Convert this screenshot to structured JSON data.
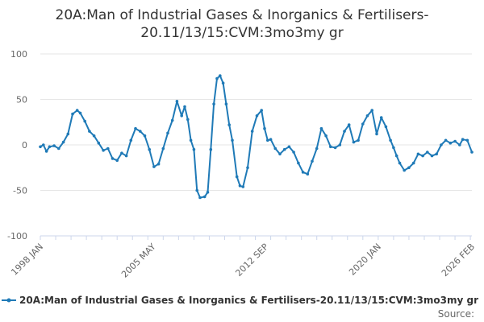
{
  "chart_data": {
    "type": "line",
    "title_lines": [
      "20A:Man of Industrial Gases & Inorganics & Fertilisers-",
      "20.11/13/15:CVM:3mo3my gr"
    ],
    "ylim": [
      -100,
      100
    ],
    "y_ticks": [
      100,
      50,
      0,
      -50,
      -100
    ],
    "x_range": [
      1998.0,
      2026.1
    ],
    "x_ticks": [
      {
        "label": "1998 JAN",
        "x": 1998.0
      },
      {
        "label": "2005 MAY",
        "x": 2005.33
      },
      {
        "label": "2012 SEP",
        "x": 2012.67
      },
      {
        "label": "2020 JAN",
        "x": 2020.0
      },
      {
        "label": "2026 FEB",
        "x": 2026.1
      }
    ],
    "legend_label": "20A:Man of Industrial Gases & Inorganics & Fertilisers-20.11/13/15:CVM:3mo3my gr",
    "source_label": "Source:",
    "series_color": "#1f7ab7",
    "series": [
      {
        "name": "20A:Man of Industrial Gases & Inorganics & Fertilisers-20.11/13/15:CVM:3mo3my gr",
        "x": [
          1998.0,
          1998.2,
          1998.4,
          1998.6,
          1998.9,
          1999.2,
          1999.5,
          1999.8,
          2000.1,
          2000.4,
          2000.6,
          2000.9,
          2001.2,
          2001.5,
          2001.8,
          2002.1,
          2002.4,
          2002.7,
          2003.0,
          2003.3,
          2003.6,
          2003.9,
          2004.2,
          2004.5,
          2004.8,
          2005.1,
          2005.4,
          2005.7,
          2006.0,
          2006.3,
          2006.6,
          2006.9,
          2007.2,
          2007.4,
          2007.6,
          2007.8,
          2008.0,
          2008.2,
          2008.4,
          2008.7,
          2008.9,
          2009.1,
          2009.3,
          2009.5,
          2009.7,
          2009.9,
          2010.1,
          2010.3,
          2010.5,
          2010.8,
          2011.0,
          2011.2,
          2011.5,
          2011.8,
          2012.1,
          2012.4,
          2012.6,
          2012.8,
          2013.0,
          2013.3,
          2013.6,
          2013.9,
          2014.2,
          2014.5,
          2014.8,
          2015.1,
          2015.4,
          2015.7,
          2016.0,
          2016.3,
          2016.6,
          2016.9,
          2017.2,
          2017.5,
          2017.8,
          2018.1,
          2018.4,
          2018.7,
          2019.0,
          2019.3,
          2019.6,
          2019.9,
          2020.2,
          2020.5,
          2020.8,
          2021.0,
          2021.2,
          2021.4,
          2021.7,
          2022.0,
          2022.3,
          2022.6,
          2022.9,
          2023.2,
          2023.5,
          2023.8,
          2024.1,
          2024.4,
          2024.7,
          2025.0,
          2025.3,
          2025.5,
          2025.8,
          2026.1
        ],
        "values": [
          -2,
          0,
          -7,
          -2,
          -1,
          -4,
          3,
          12,
          34,
          38,
          35,
          26,
          15,
          10,
          2,
          -6,
          -4,
          -15,
          -17,
          -9,
          -12,
          5,
          18,
          15,
          10,
          -5,
          -24,
          -21,
          -4,
          13,
          27,
          48,
          32,
          42,
          28,
          5,
          -5,
          -50,
          -58,
          -57,
          -52,
          -5,
          45,
          73,
          76,
          68,
          45,
          22,
          5,
          -35,
          -45,
          -46,
          -25,
          15,
          32,
          38,
          18,
          5,
          6,
          -4,
          -10,
          -5,
          -2,
          -8,
          -20,
          -30,
          -32,
          -18,
          -4,
          18,
          10,
          -2,
          -3,
          0,
          15,
          22,
          3,
          5,
          23,
          32,
          38,
          12,
          30,
          20,
          5,
          -3,
          -12,
          -20,
          -28,
          -25,
          -20,
          -10,
          -12,
          -8,
          -12,
          -10,
          0,
          5,
          2,
          4,
          0,
          6,
          5,
          -8
        ]
      }
    ]
  }
}
